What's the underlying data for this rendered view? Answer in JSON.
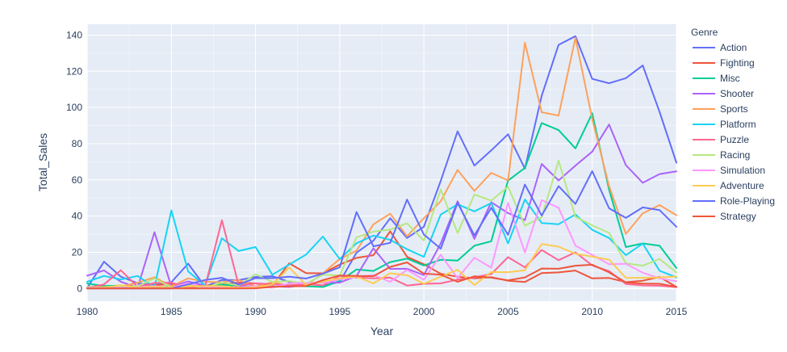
{
  "chart_data": {
    "type": "line",
    "xlabel": "Year",
    "ylabel": "Total_Sales",
    "xlim": [
      1980,
      2015
    ],
    "ylim": [
      -7,
      146
    ],
    "x_ticks": [
      1980,
      1985,
      1990,
      1995,
      2000,
      2005,
      2010,
      2015
    ],
    "y_ticks": [
      0,
      20,
      40,
      60,
      80,
      100,
      120,
      140
    ],
    "grid": true,
    "legend": {
      "title": "Genre",
      "placement": "right"
    },
    "x": [
      1980,
      1981,
      1982,
      1983,
      1984,
      1985,
      1986,
      1987,
      1988,
      1989,
      1990,
      1991,
      1992,
      1993,
      1994,
      1995,
      1996,
      1997,
      1998,
      1999,
      2000,
      2001,
      2002,
      2003,
      2004,
      2005,
      2006,
      2007,
      2008,
      2009,
      2010,
      2011,
      2012,
      2013,
      2014,
      2015
    ],
    "series": [
      {
        "name": "Action",
        "color": "#636efa",
        "values": [
          0.3,
          14.8,
          6.5,
          2.9,
          1.9,
          3.5,
          13.7,
          1.1,
          4.7,
          4.6,
          6.4,
          6.8,
          3.6,
          2.8,
          1.5,
          3.6,
          19.8,
          26.4,
          38.8,
          27.9,
          34.1,
          59.4,
          86.8,
          67.9,
          76.3,
          85.2,
          66.2,
          106.5,
          134.6,
          139.4,
          115.8,
          113.4,
          116.2,
          123.2,
          97.6,
          69.5
        ]
      },
      {
        "name": "Fighting",
        "color": "#ef553b",
        "values": [
          0.8,
          1.2,
          0.6,
          1.1,
          1.8,
          2.5,
          1.8,
          1.6,
          2.2,
          3.3,
          2.8,
          1.6,
          13.9,
          8.5,
          8.4,
          13.2,
          16.9,
          18.4,
          31.6,
          17.5,
          13.4,
          8.1,
          6.5,
          5.6,
          6.2,
          4.3,
          3.6,
          8.5,
          8.9,
          9.9,
          5.6,
          5.8,
          3.5,
          4.3,
          6.4,
          0.8
        ]
      },
      {
        "name": "Misc",
        "color": "#00cc96",
        "values": [
          2.7,
          1.4,
          1.6,
          0.5,
          0.5,
          1.1,
          0.8,
          1.4,
          2.1,
          1.3,
          1.2,
          0.6,
          1.8,
          1.2,
          0.8,
          4.2,
          10.5,
          9.7,
          14.6,
          16.5,
          12.7,
          15.9,
          15.4,
          23.6,
          26.1,
          59.6,
          66.6,
          91.4,
          87.5,
          77.4,
          96.8,
          54.5,
          22.9,
          24.9,
          23.6,
          11.3
        ]
      },
      {
        "name": "Shooter",
        "color": "#ab63fa",
        "values": [
          7.1,
          10.0,
          3.7,
          0.5,
          31.1,
          1.0,
          3.9,
          1.7,
          0.5,
          1.2,
          1.1,
          1.1,
          0.8,
          2.1,
          3.5,
          3.2,
          6.9,
          22.2,
          10.8,
          10.9,
          7.4,
          24.9,
          48.2,
          27.4,
          47.7,
          41.6,
          37.8,
          68.8,
          59.7,
          67.9,
          75.6,
          90.6,
          68.1,
          58.4,
          63.2,
          64.7
        ]
      },
      {
        "name": "Sports",
        "color": "#ffa15a",
        "values": [
          0.6,
          0.8,
          1.1,
          3.2,
          6.2,
          1.2,
          5.6,
          3.7,
          3.5,
          4.7,
          1.2,
          3.4,
          1.6,
          1.6,
          8.4,
          16.3,
          20.9,
          35.4,
          41.3,
          28.8,
          38.8,
          48.2,
          65.5,
          53.9,
          63.9,
          59.7,
          135.8,
          97.4,
          95.5,
          138.5,
          93.6,
          56.5,
          30.1,
          41.5,
          46.1,
          40.5
        ]
      },
      {
        "name": "Platform",
        "color": "#19d3f3",
        "values": [
          3.7,
          6.9,
          5.0,
          6.9,
          0.7,
          43.2,
          9.4,
          1.7,
          27.7,
          20.7,
          22.9,
          7.6,
          13.2,
          18.7,
          28.7,
          16.3,
          25.0,
          29.2,
          26.9,
          21.7,
          17.5,
          40.8,
          46.5,
          42.6,
          47.2,
          24.9,
          49.2,
          36.2,
          35.5,
          40.9,
          32.4,
          27.9,
          18.4,
          24.8,
          9.8,
          6.1
        ]
      },
      {
        "name": "Puzzle",
        "color": "#ff6692",
        "values": [
          0.3,
          2.3,
          10.1,
          0.8,
          3.1,
          3.2,
          0.4,
          0.8,
          37.7,
          1.8,
          2.8,
          2.4,
          1.7,
          2.4,
          1.7,
          6.9,
          6.1,
          5.6,
          6.0,
          1.6,
          2.6,
          2.8,
          4.9,
          6.1,
          8.0,
          17.3,
          11.7,
          21.3,
          15.6,
          20.0,
          12.7,
          9.6,
          2.5,
          1.7,
          1.5,
          0.7
        ]
      },
      {
        "name": "Racing",
        "color": "#b6e880",
        "values": [
          0.8,
          0.5,
          0.9,
          1.3,
          5.5,
          0.6,
          1.8,
          0.3,
          3.4,
          1.6,
          7.9,
          3.6,
          4.1,
          2.5,
          7.6,
          7.2,
          28.3,
          31.4,
          32.5,
          36.0,
          26.5,
          54.7,
          30.6,
          51.9,
          48.6,
          56.2,
          34.7,
          39.3,
          70.6,
          39.6,
          34.9,
          30.7,
          13.9,
          12.6,
          16.3,
          8.9
        ]
      },
      {
        "name": "Simulation",
        "color": "#ff97ff",
        "values": [
          0.6,
          0.4,
          0.4,
          0.7,
          1.4,
          0.4,
          3.1,
          0.3,
          0.5,
          0.4,
          1.3,
          0.4,
          2.8,
          3.0,
          3.1,
          4.9,
          6.5,
          7.4,
          3.7,
          10.3,
          4.8,
          18.6,
          5.7,
          17.0,
          11.5,
          47.3,
          19.8,
          48.8,
          44.6,
          23.7,
          18.5,
          13.4,
          13.6,
          8.7,
          5.6,
          4.0
        ]
      },
      {
        "name": "Adventure",
        "color": "#fecb52",
        "values": [
          0.3,
          0.4,
          1.8,
          0.4,
          1.0,
          0.5,
          1.2,
          1.4,
          1.3,
          0.5,
          0.6,
          2.1,
          11.6,
          2.0,
          3.8,
          5.6,
          6.6,
          2.8,
          8.4,
          7.3,
          2.6,
          6.5,
          10.3,
          1.9,
          9.1,
          9.0,
          10.1,
          24.6,
          23.1,
          19.2,
          17.6,
          15.9,
          5.9,
          5.9,
          6.1,
          6.6
        ]
      },
      {
        "name": "Role-Playing",
        "color": "#636efa",
        "values": [
          0.0,
          0.0,
          0.0,
          0.0,
          0.0,
          0.0,
          2.3,
          4.7,
          5.9,
          2.2,
          5.7,
          5.7,
          6.5,
          5.5,
          8.2,
          11.7,
          42.2,
          23.3,
          25.2,
          49.1,
          29.8,
          22.0,
          47.3,
          29.3,
          44.6,
          29.6,
          57.4,
          40.3,
          56.5,
          46.7,
          64.8,
          44.3,
          39.0,
          44.8,
          43.3,
          34.1
        ]
      },
      {
        "name": "Strategy",
        "color": "#ef553b",
        "values": [
          0.0,
          0.0,
          0.0,
          0.0,
          0.0,
          0.0,
          0.0,
          0.0,
          0.0,
          0.0,
          0.1,
          0.9,
          1.2,
          1.3,
          4.6,
          7.2,
          6.9,
          6.8,
          11.9,
          14.4,
          8.2,
          7.6,
          3.7,
          6.7,
          6.0,
          4.5,
          6.1,
          11.0,
          10.9,
          12.6,
          13.1,
          8.9,
          3.3,
          2.7,
          2.6,
          0.9
        ]
      }
    ]
  }
}
